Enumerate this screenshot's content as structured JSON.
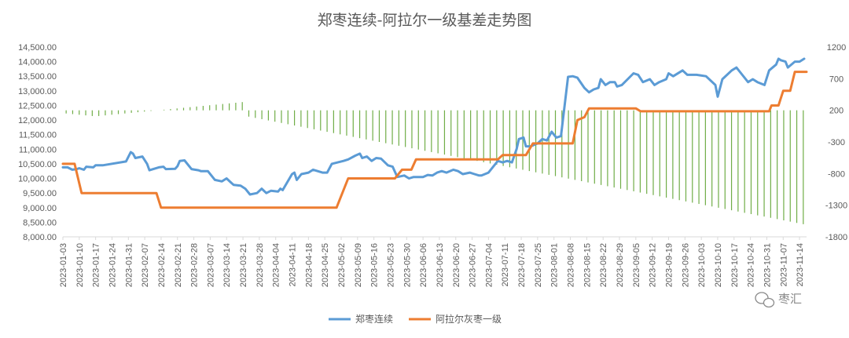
{
  "chart_data": {
    "type": "line",
    "title": "郑枣连续-阿拉尔一级基差走势图",
    "xlabel": "",
    "ylabel": "",
    "x_start": "2023-01-03",
    "x_end": "2023-11-17",
    "x_ticks": [
      "2023-01-03",
      "2023-01-10",
      "2023-01-17",
      "2023-01-24",
      "2023-01-31",
      "2023-02-07",
      "2023-02-14",
      "2023-02-21",
      "2023-02-28",
      "2023-03-07",
      "2023-03-14",
      "2023-03-21",
      "2023-03-28",
      "2023-04-04",
      "2023-04-11",
      "2023-04-18",
      "2023-04-25",
      "2023-05-02",
      "2023-05-09",
      "2023-05-16",
      "2023-05-23",
      "2023-05-30",
      "2023-06-06",
      "2023-06-13",
      "2023-06-20",
      "2023-06-27",
      "2023-07-04",
      "2023-07-11",
      "2023-07-18",
      "2023-07-25",
      "2023-08-01",
      "2023-08-08",
      "2023-08-15",
      "2023-08-22",
      "2023-08-29",
      "2023-09-05",
      "2023-09-12",
      "2023-09-19",
      "2023-09-26",
      "2023-10-03",
      "2023-10-10",
      "2023-10-17",
      "2023-10-24",
      "2023-10-31",
      "2023-11-07",
      "2023-11-14"
    ],
    "y_left": {
      "min": 8000,
      "max": 14500,
      "step": 500,
      "tick_labels": [
        "8,000.00",
        "8,500.00",
        "9,000.00",
        "9,500.00",
        "10,000.00",
        "10,500.00",
        "11,000.00",
        "11,500.00",
        "12,000.00",
        "12,500.00",
        "13,000.00",
        "13,500.00",
        "14,000.00",
        "14,500.00"
      ]
    },
    "y_right": {
      "min": -1800,
      "max": 1200,
      "step": 500,
      "tick_labels": [
        "-1800",
        "-1300",
        "-800",
        "-300",
        "200",
        "700",
        "1200"
      ]
    },
    "grid": false,
    "legend_position": "bottom",
    "series": [
      {
        "name": "郑枣连续",
        "axis": "left",
        "color": "#5b9bd5",
        "kind": "line",
        "points": [
          [
            "2023-01-03",
            10380
          ],
          [
            "2023-01-05",
            10380
          ],
          [
            "2023-01-07",
            10300
          ],
          [
            "2023-01-09",
            10320
          ],
          [
            "2023-01-10",
            10350
          ],
          [
            "2023-01-12",
            10300
          ],
          [
            "2023-01-13",
            10400
          ],
          [
            "2023-01-16",
            10380
          ],
          [
            "2023-01-17",
            10450
          ],
          [
            "2023-01-20",
            10450
          ],
          [
            "2023-01-30",
            10580
          ],
          [
            "2023-02-01",
            10900
          ],
          [
            "2023-02-02",
            10850
          ],
          [
            "2023-02-03",
            10700
          ],
          [
            "2023-02-06",
            10750
          ],
          [
            "2023-02-08",
            10500
          ],
          [
            "2023-02-09",
            10280
          ],
          [
            "2023-02-13",
            10380
          ],
          [
            "2023-02-15",
            10400
          ],
          [
            "2023-02-16",
            10320
          ],
          [
            "2023-02-20",
            10330
          ],
          [
            "2023-02-21",
            10420
          ],
          [
            "2023-02-22",
            10600
          ],
          [
            "2023-02-24",
            10620
          ],
          [
            "2023-02-27",
            10320
          ],
          [
            "2023-03-02",
            10280
          ],
          [
            "2023-03-03",
            10250
          ],
          [
            "2023-03-06",
            10250
          ],
          [
            "2023-03-09",
            9950
          ],
          [
            "2023-03-12",
            9900
          ],
          [
            "2023-03-14",
            10000
          ],
          [
            "2023-03-16",
            9850
          ],
          [
            "2023-03-17",
            9780
          ],
          [
            "2023-03-20",
            9750
          ],
          [
            "2023-03-22",
            9650
          ],
          [
            "2023-03-24",
            9450
          ],
          [
            "2023-03-27",
            9500
          ],
          [
            "2023-03-29",
            9650
          ],
          [
            "2023-03-31",
            9500
          ],
          [
            "2023-04-02",
            9580
          ],
          [
            "2023-04-05",
            9550
          ],
          [
            "2023-04-06",
            9650
          ],
          [
            "2023-04-07",
            9600
          ],
          [
            "2023-04-11",
            10150
          ],
          [
            "2023-04-12",
            10200
          ],
          [
            "2023-04-13",
            9950
          ],
          [
            "2023-04-15",
            10150
          ],
          [
            "2023-04-18",
            10200
          ],
          [
            "2023-04-20",
            10300
          ],
          [
            "2023-04-24",
            10200
          ],
          [
            "2023-04-26",
            10200
          ],
          [
            "2023-04-28",
            10500
          ],
          [
            "2023-05-03",
            10600
          ],
          [
            "2023-05-05",
            10650
          ],
          [
            "2023-05-08",
            10780
          ],
          [
            "2023-05-10",
            10850
          ],
          [
            "2023-05-11",
            10700
          ],
          [
            "2023-05-13",
            10750
          ],
          [
            "2023-05-15",
            10600
          ],
          [
            "2023-05-17",
            10700
          ],
          [
            "2023-05-19",
            10680
          ],
          [
            "2023-05-22",
            10450
          ],
          [
            "2023-05-24",
            10400
          ],
          [
            "2023-05-26",
            10050
          ],
          [
            "2023-05-29",
            10100
          ],
          [
            "2023-05-31",
            10000
          ],
          [
            "2023-06-02",
            10050
          ],
          [
            "2023-06-04",
            10050
          ],
          [
            "2023-06-06",
            10050
          ],
          [
            "2023-06-08",
            10120
          ],
          [
            "2023-06-10",
            10100
          ],
          [
            "2023-06-12",
            10200
          ],
          [
            "2023-06-14",
            10250
          ],
          [
            "2023-06-16",
            10200
          ],
          [
            "2023-06-19",
            10300
          ],
          [
            "2023-06-21",
            10250
          ],
          [
            "2023-06-23",
            10150
          ],
          [
            "2023-06-26",
            10200
          ],
          [
            "2023-06-28",
            10150
          ],
          [
            "2023-06-30",
            10100
          ],
          [
            "2023-07-01",
            10100
          ],
          [
            "2023-07-04",
            10200
          ],
          [
            "2023-07-06",
            10400
          ],
          [
            "2023-07-08",
            10600
          ],
          [
            "2023-07-10",
            10550
          ],
          [
            "2023-07-12",
            10600
          ],
          [
            "2023-07-14",
            10550
          ],
          [
            "2023-07-16",
            11000
          ],
          [
            "2023-07-17",
            11350
          ],
          [
            "2023-07-19",
            11400
          ],
          [
            "2023-07-20",
            11100
          ],
          [
            "2023-07-22",
            11100
          ],
          [
            "2023-07-25",
            11200
          ],
          [
            "2023-07-27",
            11350
          ],
          [
            "2023-07-29",
            11300
          ],
          [
            "2023-07-31",
            11600
          ],
          [
            "2023-08-02",
            11400
          ],
          [
            "2023-08-04",
            11450
          ],
          [
            "2023-08-07",
            13480
          ],
          [
            "2023-08-09",
            13500
          ],
          [
            "2023-08-11",
            13450
          ],
          [
            "2023-08-14",
            13100
          ],
          [
            "2023-08-16",
            12950
          ],
          [
            "2023-08-18",
            13050
          ],
          [
            "2023-08-20",
            13100
          ],
          [
            "2023-08-21",
            13400
          ],
          [
            "2023-08-23",
            13200
          ],
          [
            "2023-08-25",
            13300
          ],
          [
            "2023-08-27",
            13300
          ],
          [
            "2023-08-28",
            13150
          ],
          [
            "2023-08-30",
            13200
          ],
          [
            "2023-09-04",
            13600
          ],
          [
            "2023-09-06",
            13550
          ],
          [
            "2023-09-08",
            13300
          ],
          [
            "2023-09-11",
            13400
          ],
          [
            "2023-09-13",
            13200
          ],
          [
            "2023-09-15",
            13300
          ],
          [
            "2023-09-18",
            13400
          ],
          [
            "2023-09-19",
            13600
          ],
          [
            "2023-09-21",
            13500
          ],
          [
            "2023-09-25",
            13700
          ],
          [
            "2023-09-27",
            13550
          ],
          [
            "2023-10-01",
            13550
          ],
          [
            "2023-10-05",
            13500
          ],
          [
            "2023-10-09",
            13200
          ],
          [
            "2023-10-10",
            12800
          ],
          [
            "2023-10-12",
            13400
          ],
          [
            "2023-10-16",
            13700
          ],
          [
            "2023-10-18",
            13800
          ],
          [
            "2023-10-20",
            13600
          ],
          [
            "2023-10-23",
            13300
          ],
          [
            "2023-10-25",
            13400
          ],
          [
            "2023-10-27",
            13300
          ],
          [
            "2023-10-30",
            13200
          ],
          [
            "2023-11-01",
            13700
          ],
          [
            "2023-11-04",
            13900
          ],
          [
            "2023-11-05",
            14100
          ],
          [
            "2023-11-06",
            14050
          ],
          [
            "2023-11-08",
            14000
          ],
          [
            "2023-11-09",
            13800
          ],
          [
            "2023-11-12",
            14000
          ],
          [
            "2023-11-14",
            14000
          ],
          [
            "2023-11-16",
            14100
          ]
        ]
      },
      {
        "name": "阿拉尔灰枣一级",
        "axis": "left",
        "color": "#ed7d31",
        "kind": "line",
        "points": [
          [
            "2023-01-03",
            10500
          ],
          [
            "2023-01-08",
            10500
          ],
          [
            "2023-01-11",
            9500
          ],
          [
            "2023-02-12",
            9500
          ],
          [
            "2023-02-14",
            9000
          ],
          [
            "2023-04-30",
            9000
          ],
          [
            "2023-05-05",
            10000
          ],
          [
            "2023-05-25",
            10000
          ],
          [
            "2023-05-28",
            10300
          ],
          [
            "2023-06-01",
            10300
          ],
          [
            "2023-06-03",
            10650
          ],
          [
            "2023-07-08",
            10650
          ],
          [
            "2023-07-10",
            10800
          ],
          [
            "2023-07-20",
            10800
          ],
          [
            "2023-07-23",
            11200
          ],
          [
            "2023-08-09",
            11200
          ],
          [
            "2023-08-11",
            12000
          ],
          [
            "2023-08-14",
            12100
          ],
          [
            "2023-08-16",
            12400
          ],
          [
            "2023-09-05",
            12400
          ],
          [
            "2023-09-07",
            12300
          ],
          [
            "2023-11-01",
            12300
          ],
          [
            "2023-11-02",
            12500
          ],
          [
            "2023-11-05",
            12500
          ],
          [
            "2023-11-07",
            13000
          ],
          [
            "2023-11-10",
            13000
          ],
          [
            "2023-11-12",
            13650
          ],
          [
            "2023-11-17",
            13650
          ]
        ]
      },
      {
        "name": "",
        "axis": "right",
        "color": "#70ad47",
        "kind": "bar",
        "values": [
          -50,
          -60,
          -70,
          -80,
          -90,
          -90,
          -80,
          -70,
          -60,
          -50,
          -40,
          -30,
          -20,
          -10,
          0,
          10,
          20,
          30,
          40,
          50,
          60,
          70,
          80,
          90,
          100,
          110,
          120,
          130,
          -100,
          -120,
          -140,
          -160,
          -180,
          -200,
          -220,
          -240,
          -260,
          -280,
          -300,
          -320,
          -340,
          -360,
          -380,
          -400,
          -420,
          -440,
          -460,
          -480,
          -500,
          -520,
          -540,
          -560,
          -580,
          -600,
          -620,
          -640,
          -660,
          -680,
          -700,
          -720,
          -740,
          -760,
          -780,
          -800,
          -820,
          -840,
          -860,
          -880,
          -900,
          -920,
          -940,
          -960,
          -980,
          -1000,
          -1020,
          -1040,
          -1060,
          -1080,
          -1100,
          -1120,
          -1140,
          -1160,
          -1180,
          -1200,
          -1220,
          -1240,
          -1260,
          -1280,
          -1300,
          -1320,
          -1340,
          -1360,
          -1380,
          -1400,
          -1420,
          -1440,
          -1460,
          -1480,
          -1500,
          -1520,
          -1540,
          -1560,
          -1580,
          -1600,
          -1620,
          -1640,
          -1660,
          -1680,
          -1700,
          -1720,
          -1740,
          -1760,
          -1780,
          -1800
        ]
      }
    ],
    "legend": [
      "郑枣连续",
      "阿拉尔灰枣一级"
    ]
  },
  "watermark": {
    "text": "枣汇",
    "icon": "wechat-icon"
  }
}
